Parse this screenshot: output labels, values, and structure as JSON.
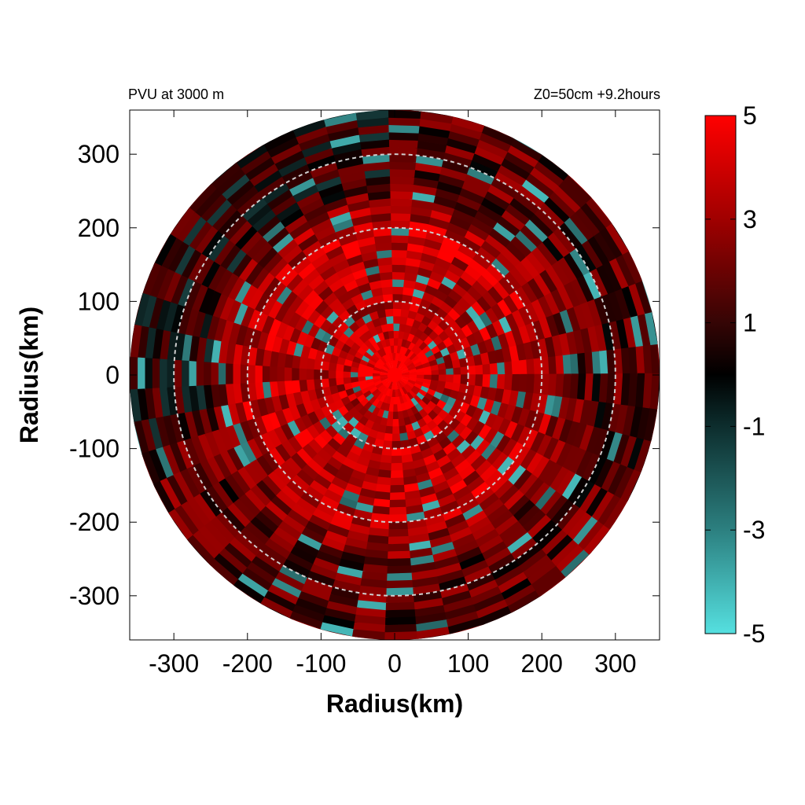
{
  "chart_data": {
    "type": "heatmap",
    "title_left": "PVU at  3000 m",
    "title_right": "Z0=50cm  +9.2hours",
    "xlabel": "Radius(km)",
    "ylabel": "Radius(km)",
    "xlim": [
      -360,
      360
    ],
    "ylim": [
      -360,
      360
    ],
    "x_ticks": [
      -300,
      -200,
      -100,
      0,
      100,
      200,
      300
    ],
    "y_ticks": [
      300,
      200,
      100,
      0,
      -100,
      -200,
      -300
    ],
    "x_tick_labels": [
      "-300",
      "-200",
      "-100",
      "0",
      "100",
      "200",
      "300"
    ],
    "y_tick_labels": [
      "300",
      "200",
      "100",
      "0",
      "-100",
      "-200",
      "-300"
    ],
    "domain_radius_km": 360,
    "range_rings_km": [
      100,
      200,
      300
    ],
    "colorbar": {
      "range": [
        -5,
        5
      ],
      "ticks": [
        5,
        3,
        1,
        -1,
        -3,
        -5
      ],
      "tick_labels": [
        "5",
        "3",
        "1",
        "-1",
        "-3",
        "-5"
      ],
      "colors": {
        "min": "#55e0e0",
        "zero": "#000000",
        "max": "#ff0000"
      }
    },
    "field_summary": [
      {
        "region": "center (r < 30 km)",
        "value": 5
      },
      {
        "region": "inner ring 60-200 km",
        "value": 3.5
      },
      {
        "region": "outer 200-360 km",
        "value": 1.5
      },
      {
        "region": "north-west sector beyond 250 km",
        "value": 0.5
      },
      {
        "region": "scattered negative cells",
        "value": -3
      }
    ]
  }
}
